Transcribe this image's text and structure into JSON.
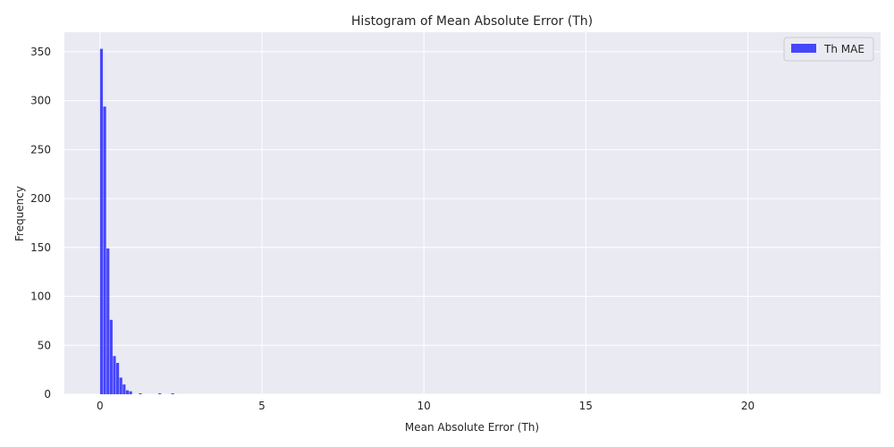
{
  "chart_data": {
    "type": "bar",
    "title": "Histogram of Mean Absolute Error (Th)",
    "xlabel": "Mean Absolute Error (Th)",
    "ylabel": "Frequency",
    "xlim": [
      -1.1,
      24.1
    ],
    "ylim": [
      0,
      370
    ],
    "xticks": [
      0,
      5,
      10,
      15,
      20
    ],
    "yticks": [
      0,
      50,
      100,
      150,
      200,
      250,
      300,
      350
    ],
    "grid": true,
    "legend_position": "top-right",
    "bar_color": "#0000ff",
    "background_color": "#eaeaf2",
    "bin_width": 0.1,
    "series": [
      {
        "name": "Th MAE",
        "bins": [
          {
            "x": 0.0,
            "value": 353
          },
          {
            "x": 0.1,
            "value": 294
          },
          {
            "x": 0.2,
            "value": 149
          },
          {
            "x": 0.3,
            "value": 76
          },
          {
            "x": 0.4,
            "value": 39
          },
          {
            "x": 0.5,
            "value": 32
          },
          {
            "x": 0.6,
            "value": 17
          },
          {
            "x": 0.7,
            "value": 10
          },
          {
            "x": 0.8,
            "value": 4
          },
          {
            "x": 0.9,
            "value": 3
          },
          {
            "x": 1.2,
            "value": 1
          },
          {
            "x": 1.8,
            "value": 1
          },
          {
            "x": 2.2,
            "value": 1
          }
        ]
      }
    ]
  }
}
